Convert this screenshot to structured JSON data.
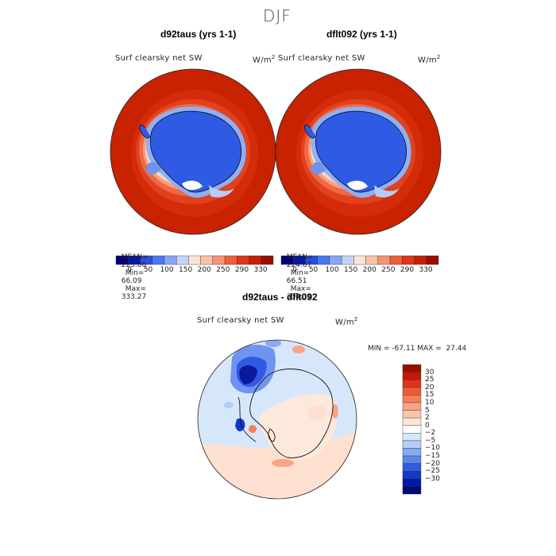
{
  "figure": {
    "title": "DJF"
  },
  "panels": [
    {
      "title": "d92taus (yrs 1-1)",
      "variable": "Surf clearsky net SW",
      "units_base": "W/m",
      "units_exp": "2",
      "stats": {
        "mean_label": "MEAN=",
        "mean": "223.86",
        "min_label": "Min=",
        "min": "66.09",
        "max_label": "Max=",
        "max": "333.27"
      }
    },
    {
      "title": "dflt092 (yrs 1-1)",
      "variable": "Surf clearsky net SW",
      "units_base": "W/m",
      "units_exp": "2",
      "stats": {
        "mean_label": "MEAN=",
        "mean": "224.67",
        "min_label": "Min=",
        "min": "66.51",
        "max_label": "Max=",
        "max": "334.35"
      }
    }
  ],
  "abs_colorbar": {
    "ticks": [
      "0",
      "50",
      "100",
      "150",
      "200",
      "250",
      "290",
      "330"
    ],
    "colors": [
      "#00007a",
      "#0019b4",
      "#2a4fe0",
      "#4a78ee",
      "#86a6f5",
      "#c3d4fb",
      "#fbe4d6",
      "#f9c1a6",
      "#f69474",
      "#ef5e3a",
      "#e0361a",
      "#c71e08",
      "#9b0d00"
    ]
  },
  "diff_panel": {
    "title": "d92taus - dflt092",
    "variable": "Surf clearsky net SW",
    "units_base": "W/m",
    "units_exp": "2",
    "min_max_text": "MIN = -67.11 MAX =  27.44"
  },
  "diff_colorbar": {
    "labels": [
      "30",
      "25",
      "20",
      "15",
      "10",
      "5",
      "2",
      "0",
      "−2",
      "−5",
      "−10",
      "−15",
      "−20",
      "−25",
      "−30"
    ],
    "colors": [
      "#9b0d00",
      "#c41a05",
      "#e0341a",
      "#ef5a36",
      "#f67f5a",
      "#f9a487",
      "#fbc5ac",
      "#fde6d8",
      "#ffffff",
      "#d6e6fb",
      "#b3ccf7",
      "#87a9f1",
      "#5a86ea",
      "#2e5ee0",
      "#1638c8",
      "#0019a8",
      "#000a78"
    ]
  },
  "colors": {
    "ocean_outer": "#c82200",
    "ocean_mid": "#e0421f",
    "ice_edge": "#f7a07e",
    "continent": "#2e5ae4",
    "diff_background": "#d7e7fb",
    "diff_positive": "#fde0cf",
    "diff_strong_negative": "#0a1a9a"
  }
}
